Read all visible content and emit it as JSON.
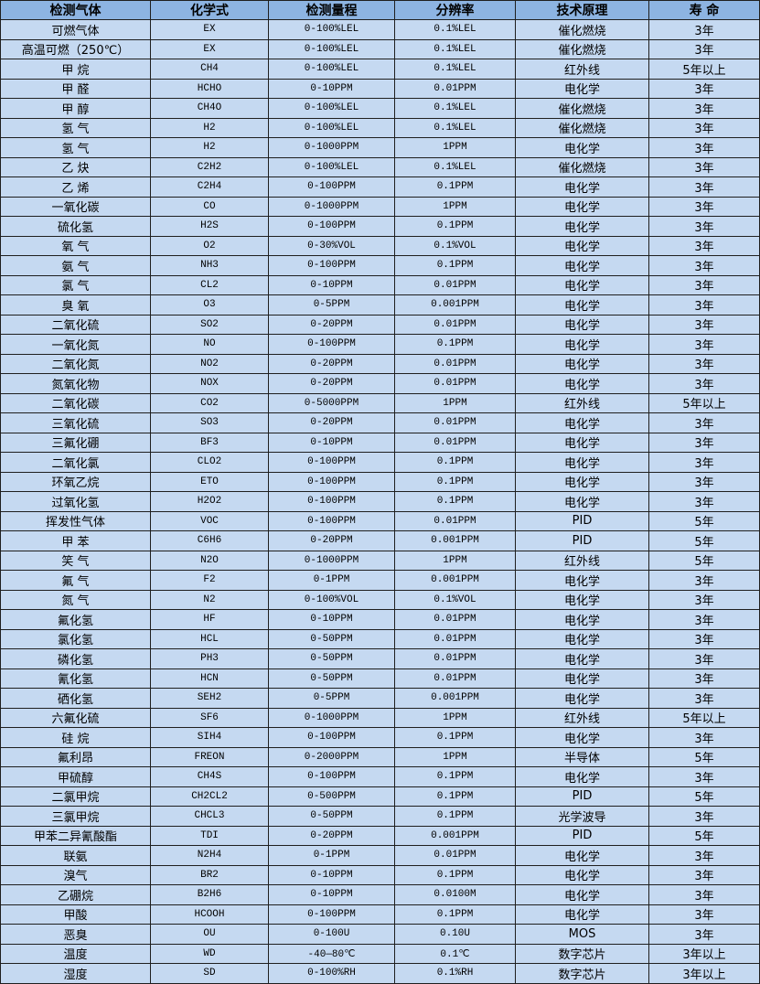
{
  "colors": {
    "header_bg": "#8db4e2",
    "row_bg": "#c5d9f1",
    "border": "#1f1f1f"
  },
  "table": {
    "headers": [
      "检测气体",
      "化学式",
      "检测量程",
      "分辨率",
      "技术原理",
      "寿 命"
    ],
    "rows": [
      [
        "可燃气体",
        "EX",
        "0-100%LEL",
        "0.1%LEL",
        "催化燃烧",
        "3年"
      ],
      [
        "高温可燃（250℃）",
        "EX",
        "0-100%LEL",
        "0.1%LEL",
        "催化燃烧",
        "3年"
      ],
      [
        "甲 烷",
        "CH4",
        "0-100%LEL",
        "0.1%LEL",
        "红外线",
        "5年以上"
      ],
      [
        "甲 醛",
        "HCHO",
        "0-10PPM",
        "0.01PPM",
        "电化学",
        "3年"
      ],
      [
        "甲 醇",
        "CH4O",
        "0-100%LEL",
        "0.1%LEL",
        "催化燃烧",
        "3年"
      ],
      [
        "氢 气",
        "H2",
        "0-100%LEL",
        "0.1%LEL",
        "催化燃烧",
        "3年"
      ],
      [
        "氢 气",
        "H2",
        "0-1000PPM",
        "1PPM",
        "电化学",
        "3年"
      ],
      [
        "乙 炔",
        "C2H2",
        "0-100%LEL",
        "0.1%LEL",
        "催化燃烧",
        "3年"
      ],
      [
        "乙 烯",
        "C2H4",
        "0-100PPM",
        "0.1PPM",
        "电化学",
        "3年"
      ],
      [
        "一氧化碳",
        "CO",
        "0-1000PPM",
        "1PPM",
        "电化学",
        "3年"
      ],
      [
        "硫化氢",
        "H2S",
        "0-100PPM",
        "0.1PPM",
        "电化学",
        "3年"
      ],
      [
        "氧 气",
        "O2",
        "0-30%VOL",
        "0.1%VOL",
        "电化学",
        "3年"
      ],
      [
        "氨 气",
        "NH3",
        "0-100PPM",
        "0.1PPM",
        "电化学",
        "3年"
      ],
      [
        "氯 气",
        "CL2",
        "0-10PPM",
        "0.01PPM",
        "电化学",
        "3年"
      ],
      [
        "臭 氧",
        "O3",
        "0-5PPM",
        "0.001PPM",
        "电化学",
        "3年"
      ],
      [
        "二氧化硫",
        "SO2",
        "0-20PPM",
        "0.01PPM",
        "电化学",
        "3年"
      ],
      [
        "一氧化氮",
        "NO",
        "0-100PPM",
        "0.1PPM",
        "电化学",
        "3年"
      ],
      [
        "二氧化氮",
        "NO2",
        "0-20PPM",
        "0.01PPM",
        "电化学",
        "3年"
      ],
      [
        "氮氧化物",
        "NOX",
        "0-20PPM",
        "0.01PPM",
        "电化学",
        "3年"
      ],
      [
        "二氧化碳",
        "CO2",
        "0-5000PPM",
        "1PPM",
        "红外线",
        "5年以上"
      ],
      [
        "三氧化硫",
        "SO3",
        "0-20PPM",
        "0.01PPM",
        "电化学",
        "3年"
      ],
      [
        "三氟化硼",
        "BF3",
        "0-10PPM",
        "0.01PPM",
        "电化学",
        "3年"
      ],
      [
        "二氧化氯",
        "CLO2",
        "0-100PPM",
        "0.1PPM",
        "电化学",
        "3年"
      ],
      [
        "环氧乙烷",
        "ETO",
        "0-100PPM",
        "0.1PPM",
        "电化学",
        "3年"
      ],
      [
        "过氧化氢",
        "H2O2",
        "0-100PPM",
        "0.1PPM",
        "电化学",
        "3年"
      ],
      [
        "挥发性气体",
        "VOC",
        "0-100PPM",
        "0.01PPM",
        "PID",
        "5年"
      ],
      [
        "甲 苯",
        "C6H6",
        "0-20PPM",
        "0.001PPM",
        "PID",
        "5年"
      ],
      [
        "笑 气",
        "N2O",
        "0-1000PPM",
        "1PPM",
        "红外线",
        "5年"
      ],
      [
        "氟 气",
        "F2",
        "0-1PPM",
        "0.001PPM",
        "电化学",
        "3年"
      ],
      [
        "氮 气",
        "N2",
        "0-100%VOL",
        "0.1%VOL",
        "电化学",
        "3年"
      ],
      [
        "氟化氢",
        "HF",
        "0-10PPM",
        "0.01PPM",
        "电化学",
        "3年"
      ],
      [
        "氯化氢",
        "HCL",
        "0-50PPM",
        "0.01PPM",
        "电化学",
        "3年"
      ],
      [
        "磷化氢",
        "PH3",
        "0-50PPM",
        "0.01PPM",
        "电化学",
        "3年"
      ],
      [
        "氰化氢",
        "HCN",
        "0-50PPM",
        "0.01PPM",
        "电化学",
        "3年"
      ],
      [
        "硒化氢",
        "SEH2",
        "0-5PPM",
        "0.001PPM",
        "电化学",
        "3年"
      ],
      [
        "六氟化硫",
        "SF6",
        "0-1000PPM",
        "1PPM",
        "红外线",
        "5年以上"
      ],
      [
        "硅 烷",
        "SIH4",
        "0-100PPM",
        "0.1PPM",
        "电化学",
        "3年"
      ],
      [
        "氟利昂",
        "FREON",
        "0-2000PPM",
        "1PPM",
        "半导体",
        "5年"
      ],
      [
        "甲硫醇",
        "CH4S",
        "0-100PPM",
        "0.1PPM",
        "电化学",
        "3年"
      ],
      [
        "二氯甲烷",
        "CH2CL2",
        "0-500PPM",
        "0.1PPM",
        "PID",
        "5年"
      ],
      [
        "三氯甲烷",
        "CHCL3",
        "0-50PPM",
        "0.1PPM",
        "光学波导",
        "3年"
      ],
      [
        "甲苯二异氰酸酯",
        "TDI",
        "0-20PPM",
        "0.001PPM",
        "PID",
        "5年"
      ],
      [
        "联氨",
        "N2H4",
        "0-1PPM",
        "0.01PPM",
        "电化学",
        "3年"
      ],
      [
        "溴气",
        "BR2",
        "0-10PPM",
        "0.1PPM",
        "电化学",
        "3年"
      ],
      [
        "乙硼烷",
        "B2H6",
        "0-10PPM",
        "0.0100M",
        "电化学",
        "3年"
      ],
      [
        "甲酸",
        "HCOOH",
        "0-100PPM",
        "0.1PPM",
        "电化学",
        "3年"
      ],
      [
        "恶臭",
        "OU",
        "0-100U",
        "0.10U",
        "MOS",
        "3年"
      ],
      [
        "温度",
        "WD",
        "-40—80℃",
        "0.1℃",
        "数字芯片",
        "3年以上"
      ],
      [
        "湿度",
        "SD",
        "0-100%RH",
        "0.1%RH",
        "数字芯片",
        "3年以上"
      ]
    ]
  }
}
